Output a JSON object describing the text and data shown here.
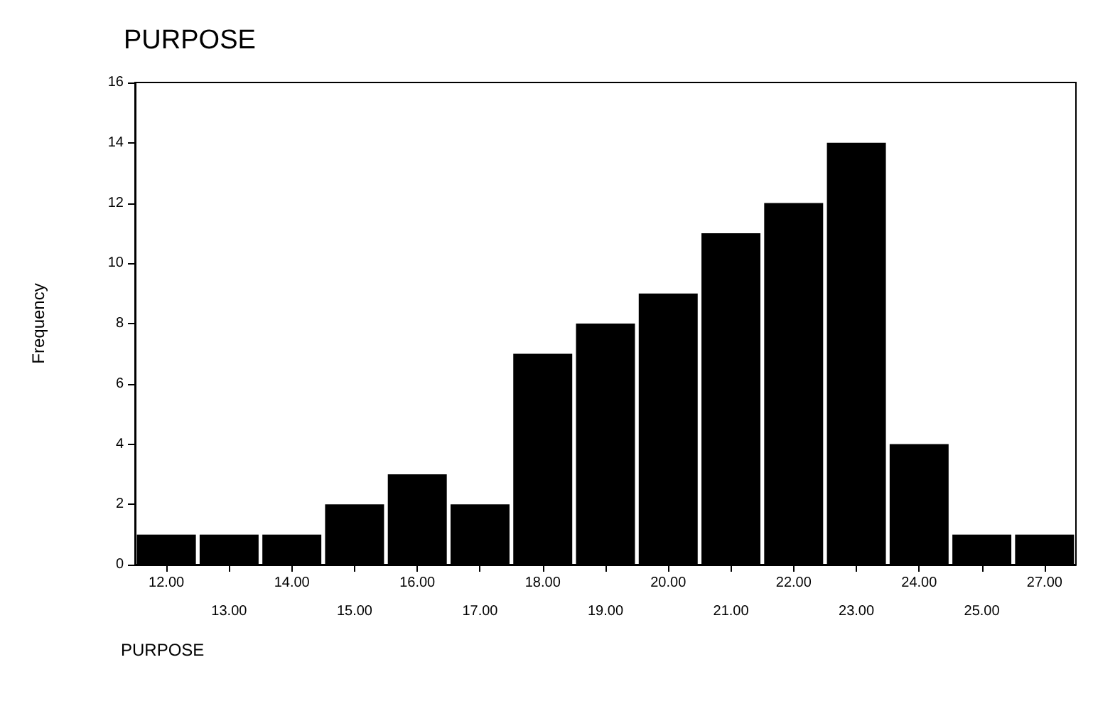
{
  "chart_data": {
    "type": "bar",
    "title": "PURPOSE",
    "xlabel": "PURPOSE",
    "ylabel": "Frequency",
    "categories": [
      "12.00",
      "13.00",
      "14.00",
      "15.00",
      "16.00",
      "17.00",
      "18.00",
      "19.00",
      "20.00",
      "21.00",
      "22.00",
      "23.00",
      "24.00",
      "25.00",
      "27.00"
    ],
    "values": [
      1,
      1,
      1,
      2,
      3,
      2,
      7,
      8,
      9,
      11,
      12,
      14,
      4,
      1,
      1
    ],
    "color": "#000000",
    "ylim": [
      0,
      16
    ],
    "yticks": [
      0,
      2,
      4,
      6,
      8,
      10,
      12,
      14,
      16
    ]
  }
}
